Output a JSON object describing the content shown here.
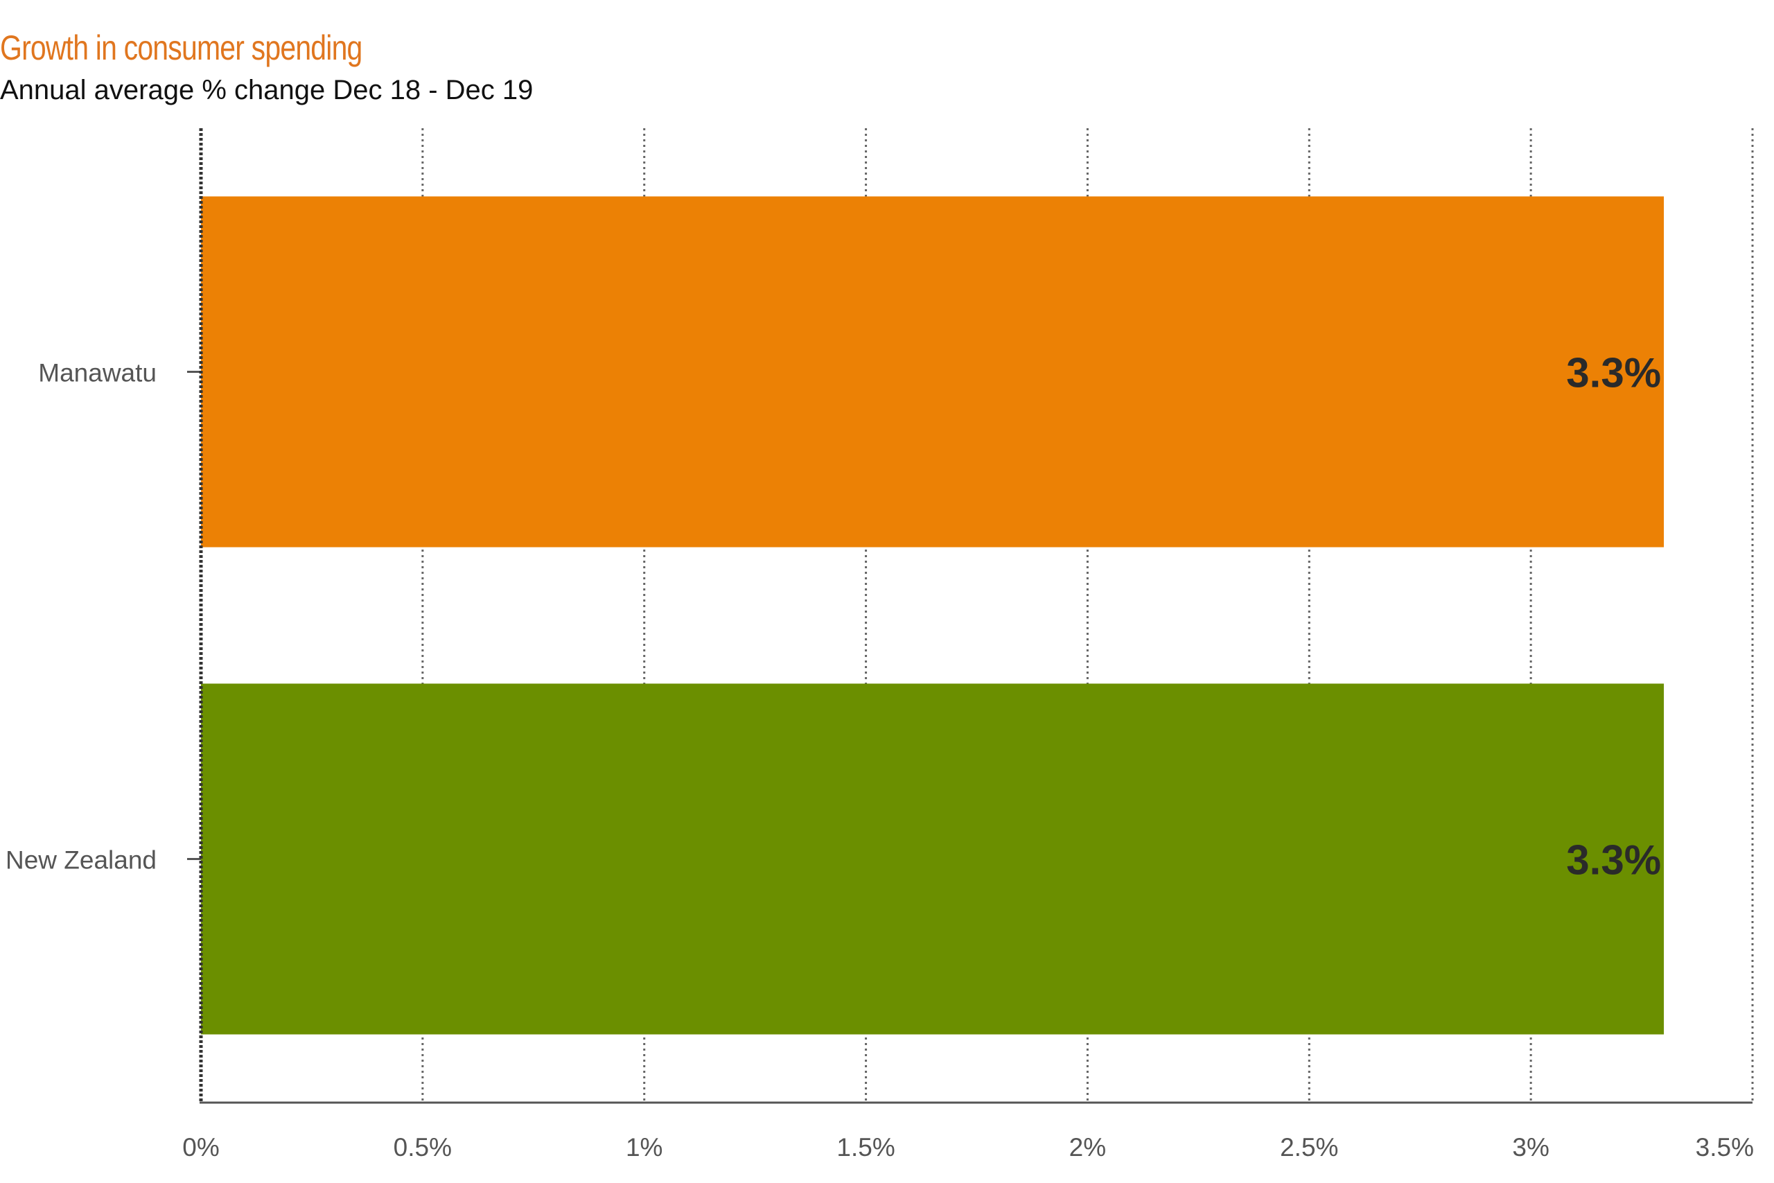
{
  "title": "Growth in consumer spending",
  "subtitle": "Annual average % change Dec 18 - Dec 19",
  "chart_data": {
    "type": "bar",
    "orientation": "horizontal",
    "categories": [
      "Manawatu",
      "New Zealand"
    ],
    "values": [
      3.3,
      3.3
    ],
    "data_labels": [
      "3.3%",
      "3.3%"
    ],
    "colors": [
      "#ec8105",
      "#6b8f00"
    ],
    "xlim": [
      0,
      3.5
    ],
    "x_ticks": [
      0,
      0.5,
      1,
      1.5,
      2,
      2.5,
      3,
      3.5
    ],
    "x_tick_labels": [
      "0%",
      "0.5%",
      "1%",
      "1.5%",
      "2%",
      "2.5%",
      "3%",
      "3.5%"
    ],
    "xlabel": "",
    "ylabel": "",
    "grid": "vertical dotted",
    "legend": "none"
  },
  "colors": {
    "title": "#e0761f",
    "axis": "#555555",
    "grid": "#666666",
    "tick_label": "#555555",
    "data_label": "#2a2a2a"
  }
}
